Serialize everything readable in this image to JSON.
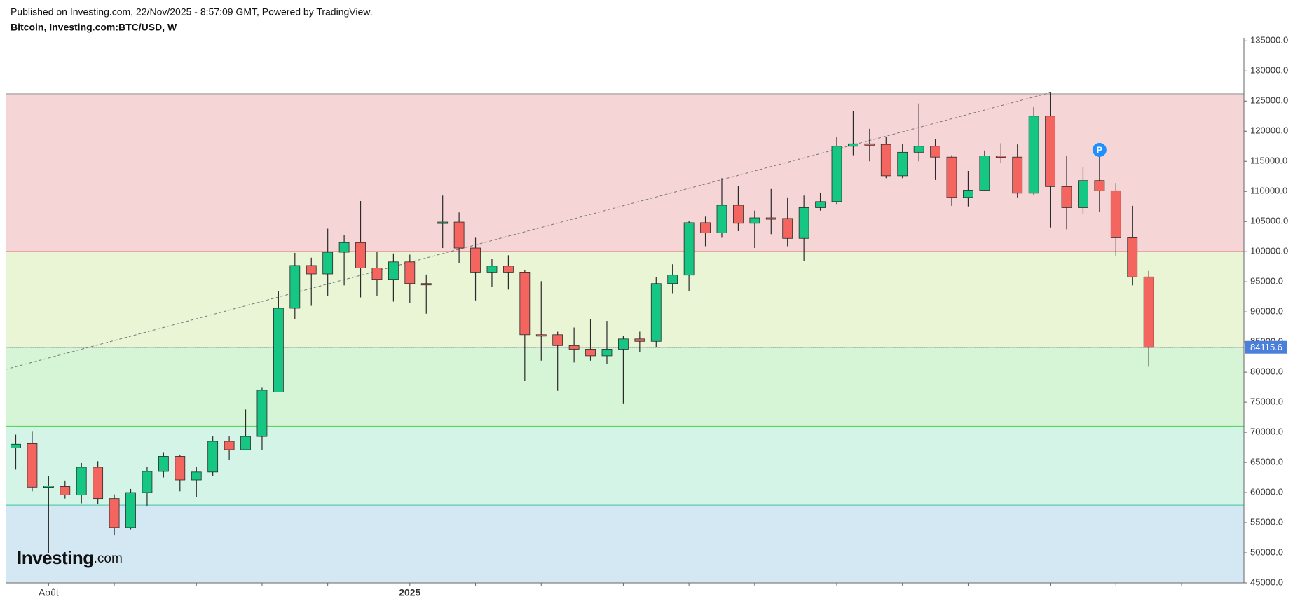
{
  "header": {
    "published": "Published on Investing.com, 22/Nov/2025 - 8:57:09 GMT, Powered by TradingView.",
    "symbol": "Bitcoin, Investing.com:BTC/USD, W"
  },
  "logo": {
    "name": "Investing",
    "suffix": ".com"
  },
  "chart_data": {
    "type": "candlestick",
    "categories": [
      null,
      null,
      "Août",
      null,
      null,
      null,
      null,
      null,
      null,
      null,
      null,
      null,
      null,
      null,
      null,
      null,
      null,
      null,
      null,
      null,
      null,
      null,
      null,
      null,
      "2025",
      null,
      null,
      null,
      null,
      null,
      null,
      null,
      null,
      null,
      null,
      null,
      null,
      null,
      null,
      null,
      null,
      null,
      null,
      null,
      null,
      null,
      null,
      null,
      null,
      null,
      null,
      null,
      null,
      null,
      null,
      null,
      null,
      null,
      null,
      null,
      null,
      null,
      null,
      null,
      null,
      null,
      null,
      null,
      null,
      null
    ],
    "open": [
      67400,
      68100,
      60900,
      61000,
      59600,
      64200,
      59000,
      54200,
      60000,
      63500,
      66000,
      62100,
      63400,
      68500,
      67100,
      69300,
      76700,
      90600,
      97700,
      96300,
      99900,
      101500,
      97300,
      95400,
      98300,
      94700,
      104800,
      104900,
      100600,
      96600,
      97600,
      96600,
      86200,
      86200,
      84400,
      83800,
      82700,
      83800,
      85500,
      85100,
      94700,
      96100,
      104800,
      103100,
      107700,
      104700,
      105600,
      105500,
      102200,
      107300,
      108300,
      117500,
      117900,
      117800,
      112600,
      116500,
      117500,
      115700,
      109000,
      110200,
      115900,
      115700,
      109700,
      122500,
      110800,
      107300,
      111800,
      110100,
      102300,
      95800
    ],
    "high": [
      69600,
      70200,
      62700,
      62000,
      64900,
      65200,
      59700,
      60600,
      64200,
      66700,
      66300,
      64200,
      69300,
      69300,
      73800,
      77400,
      93400,
      99800,
      99000,
      103800,
      102700,
      108400,
      99900,
      99700,
      99500,
      96200,
      109300,
      106500,
      102300,
      98800,
      99400,
      96900,
      95100,
      86700,
      87400,
      88800,
      88500,
      86000,
      86700,
      95800,
      97900,
      105100,
      105800,
      112200,
      110900,
      106800,
      110400,
      109000,
      109300,
      109800,
      119000,
      123300,
      120400,
      119000,
      117900,
      124600,
      118700,
      116000,
      113400,
      116800,
      118000,
      117800,
      124000,
      126400,
      115900,
      114100,
      116500,
      111400,
      107600,
      96800
    ],
    "low": [
      63800,
      60200,
      49900,
      59000,
      58200,
      58100,
      52900,
      53900,
      57800,
      62500,
      60200,
      59300,
      62800,
      65400,
      67100,
      67100,
      76700,
      88800,
      91000,
      92700,
      94400,
      92400,
      92700,
      91700,
      91500,
      89700,
      100600,
      98100,
      91900,
      94200,
      93700,
      78500,
      81900,
      76900,
      81600,
      81900,
      81400,
      74800,
      83300,
      84200,
      93100,
      93500,
      100900,
      102300,
      103400,
      100600,
      102900,
      100900,
      98400,
      106800,
      107900,
      116000,
      115000,
      112200,
      112200,
      115000,
      111900,
      107600,
      107500,
      110100,
      114700,
      109000,
      109400,
      104000,
      103700,
      106200,
      106600,
      99300,
      94400,
      80900
    ],
    "close": [
      68000,
      60900,
      61100,
      59600,
      64200,
      59000,
      54200,
      60000,
      63500,
      66000,
      62100,
      63400,
      68500,
      67100,
      69300,
      77000,
      90600,
      97700,
      96300,
      99900,
      101500,
      97300,
      95400,
      98300,
      94700,
      94500,
      104900,
      100600,
      96600,
      97600,
      96600,
      86200,
      86100,
      84400,
      83800,
      82700,
      83800,
      85500,
      85100,
      94700,
      96100,
      104800,
      103100,
      107700,
      104700,
      105600,
      105500,
      102200,
      107300,
      108300,
      117500,
      117900,
      117800,
      112600,
      116500,
      117500,
      115700,
      109000,
      110200,
      115900,
      115700,
      109700,
      122500,
      110800,
      107300,
      111800,
      110100,
      102300,
      95800,
      84115.6
    ],
    "up_color": "#16c784",
    "down_color": "#f4655f",
    "wick_color": "#2a2a2a",
    "last_price": {
      "value": 84115.6,
      "label": "84115.6",
      "color": "#4b7fdc"
    },
    "zones": [
      {
        "from": 100000,
        "to": 126200,
        "color": "#f5d5d5",
        "border": "#999999"
      },
      {
        "from": 84100,
        "to": 100000,
        "color": "#eaf5d5",
        "border": "#d9534f"
      },
      {
        "from": 71000,
        "to": 84100,
        "color": "#d6f4d6",
        "border": "#aaaaaa"
      },
      {
        "from": 57900,
        "to": 71000,
        "color": "#d4f4e8",
        "border": "#5cd65c"
      },
      {
        "from": 45000,
        "to": 57900,
        "color": "#d4e8f4",
        "border": "#5cccb0"
      }
    ],
    "trendline": {
      "start": {
        "index": 0,
        "value": 80000
      },
      "end": {
        "index": 63,
        "value": 126400
      }
    },
    "annotation": {
      "label": "P",
      "index": 66,
      "value": 116900,
      "color": "#1e90ff"
    },
    "ylim": [
      45000,
      135500
    ],
    "yticks": [
      {
        "value": 45000,
        "label": "45000.0"
      },
      {
        "value": 50000,
        "label": "50000.0"
      },
      {
        "value": 55000,
        "label": "55000.0"
      },
      {
        "value": 60000,
        "label": "60000.0"
      },
      {
        "value": 65000,
        "label": "65000.0"
      },
      {
        "value": 70000,
        "label": "70000.0"
      },
      {
        "value": 75000,
        "label": "75000.0"
      },
      {
        "value": 80000,
        "label": "80000.0"
      },
      {
        "value": 85000,
        "label": "85000.0"
      },
      {
        "value": 90000,
        "label": "90000.0"
      },
      {
        "value": 95000,
        "label": "95000.0"
      },
      {
        "value": 100000,
        "label": "100000.0"
      },
      {
        "value": 105000,
        "label": "105000.0"
      },
      {
        "value": 110000,
        "label": "110000.0"
      },
      {
        "value": 115000,
        "label": "115000.0"
      },
      {
        "value": 120000,
        "label": "120000.0"
      },
      {
        "value": 125000,
        "label": "125000.0"
      },
      {
        "value": 130000,
        "label": "130000.0"
      },
      {
        "value": 135000,
        "label": "135000.0"
      }
    ]
  }
}
